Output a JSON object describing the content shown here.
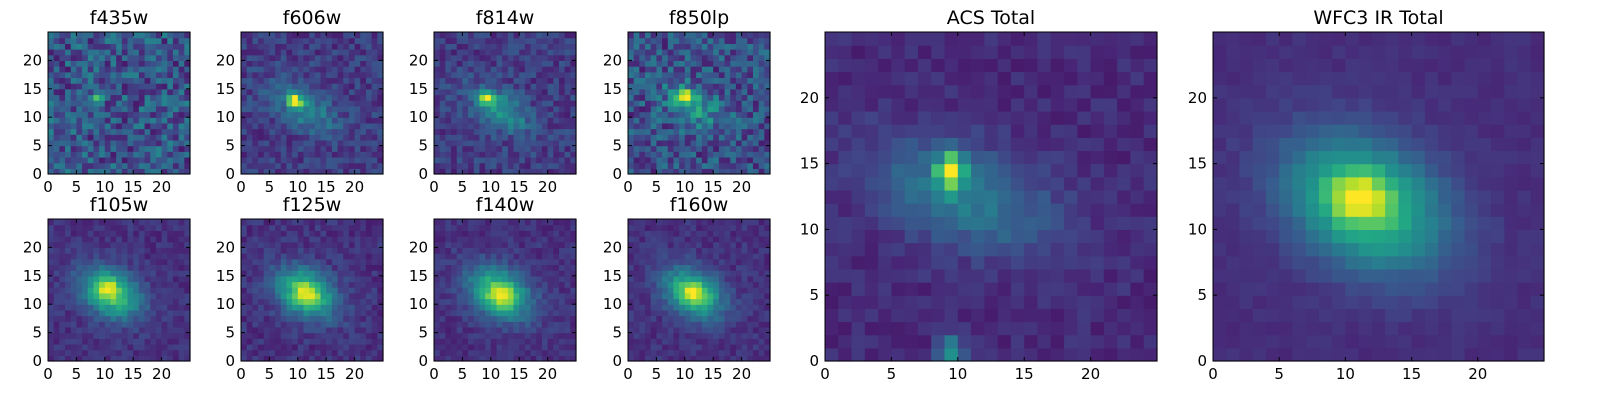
{
  "chart_data": [
    {
      "type": "heatmap",
      "title": "f435w",
      "xlim": [
        0,
        25
      ],
      "ylim": [
        0,
        25
      ],
      "xticks": [
        0,
        5,
        10,
        15,
        20
      ],
      "yticks": [
        0,
        5,
        10,
        15,
        20
      ],
      "colormap": "viridis",
      "features": {
        "noise": 0.38,
        "base": 0.26,
        "compact": {
          "x": 9,
          "y": 13.5,
          "sx": 0.55,
          "sy": 0.9,
          "amp": 0.72
        }
      }
    },
    {
      "type": "heatmap",
      "title": "f606w",
      "xlim": [
        0,
        25
      ],
      "ylim": [
        0,
        25
      ],
      "xticks": [
        0,
        5,
        10,
        15,
        20
      ],
      "yticks": [
        0,
        5,
        10,
        15,
        20
      ],
      "colormap": "viridis",
      "features": {
        "noise": 0.2,
        "base": 0.18,
        "compact": {
          "x": 9.5,
          "y": 13,
          "sx": 0.8,
          "sy": 0.7,
          "amp": 0.75
        },
        "extended": {
          "x": 11,
          "y": 11.5,
          "sx": 4.5,
          "sy": 2.2,
          "angle": -30,
          "amp": 0.3
        }
      }
    },
    {
      "type": "heatmap",
      "title": "f814w",
      "xlim": [
        0,
        25
      ],
      "ylim": [
        0,
        25
      ],
      "xticks": [
        0,
        5,
        10,
        15,
        20
      ],
      "yticks": [
        0,
        5,
        10,
        15,
        20
      ],
      "colormap": "viridis",
      "features": {
        "noise": 0.2,
        "base": 0.18,
        "compact": {
          "x": 9.5,
          "y": 13.5,
          "sx": 0.8,
          "sy": 0.7,
          "amp": 0.75
        },
        "extended": {
          "x": 11.5,
          "y": 11.5,
          "sx": 4.2,
          "sy": 2.1,
          "angle": -30,
          "amp": 0.35
        }
      }
    },
    {
      "type": "heatmap",
      "title": "f850lp",
      "xlim": [
        0,
        25
      ],
      "ylim": [
        0,
        25
      ],
      "xticks": [
        0,
        5,
        10,
        15,
        20
      ],
      "yticks": [
        0,
        5,
        10,
        15,
        20
      ],
      "colormap": "viridis",
      "features": {
        "noise": 0.34,
        "base": 0.24,
        "compact": {
          "x": 10,
          "y": 14,
          "sx": 1.0,
          "sy": 0.8,
          "amp": 0.62
        },
        "extended": {
          "x": 11.5,
          "y": 12,
          "sx": 3.8,
          "sy": 2.2,
          "angle": -30,
          "amp": 0.3
        }
      }
    },
    {
      "type": "heatmap",
      "title": "f105w",
      "xlim": [
        0,
        25
      ],
      "ylim": [
        0,
        25
      ],
      "xticks": [
        0,
        5,
        10,
        15,
        20
      ],
      "yticks": [
        0,
        5,
        10,
        15,
        20
      ],
      "colormap": "viridis",
      "features": {
        "noise": 0.12,
        "base": 0.14,
        "compact": {
          "x": 10.5,
          "y": 13,
          "sx": 1.3,
          "sy": 1.2,
          "amp": 0.3
        },
        "extended": {
          "x": 11,
          "y": 12,
          "sx": 4.0,
          "sy": 2.8,
          "angle": -30,
          "amp": 0.6
        }
      }
    },
    {
      "type": "heatmap",
      "title": "f125w",
      "xlim": [
        0,
        25
      ],
      "ylim": [
        0,
        25
      ],
      "xticks": [
        0,
        5,
        10,
        15,
        20
      ],
      "yticks": [
        0,
        5,
        10,
        15,
        20
      ],
      "colormap": "viridis",
      "features": {
        "noise": 0.14,
        "base": 0.14,
        "compact": {
          "x": 11.5,
          "y": 12,
          "sx": 1.4,
          "sy": 1.2,
          "amp": 0.3
        },
        "extended": {
          "x": 11.5,
          "y": 12,
          "sx": 4.0,
          "sy": 2.8,
          "angle": -30,
          "amp": 0.6
        }
      }
    },
    {
      "type": "heatmap",
      "title": "f140w",
      "xlim": [
        0,
        25
      ],
      "ylim": [
        0,
        25
      ],
      "xticks": [
        0,
        5,
        10,
        15,
        20
      ],
      "yticks": [
        0,
        5,
        10,
        15,
        20
      ],
      "colormap": "viridis",
      "features": {
        "noise": 0.12,
        "base": 0.14,
        "compact": {
          "x": 12,
          "y": 11.5,
          "sx": 1.6,
          "sy": 1.3,
          "amp": 0.3
        },
        "extended": {
          "x": 11.5,
          "y": 12,
          "sx": 4.2,
          "sy": 2.9,
          "angle": -30,
          "amp": 0.6
        }
      }
    },
    {
      "type": "heatmap",
      "title": "f160w",
      "xlim": [
        0,
        25
      ],
      "ylim": [
        0,
        25
      ],
      "xticks": [
        0,
        5,
        10,
        15,
        20
      ],
      "yticks": [
        0,
        5,
        10,
        15,
        20
      ],
      "colormap": "viridis",
      "features": {
        "noise": 0.12,
        "base": 0.14,
        "compact": {
          "x": 11.5,
          "y": 12,
          "sx": 1.4,
          "sy": 1.2,
          "amp": 0.3
        },
        "extended": {
          "x": 11.5,
          "y": 12,
          "sx": 4.0,
          "sy": 2.7,
          "angle": -30,
          "amp": 0.6
        }
      }
    },
    {
      "type": "heatmap",
      "title": "ACS Total",
      "xlim": [
        0,
        25
      ],
      "ylim": [
        0,
        25
      ],
      "xticks": [
        0,
        5,
        10,
        15,
        20
      ],
      "yticks": [
        0,
        5,
        10,
        15,
        20
      ],
      "colormap": "viridis",
      "features": {
        "noise": 0.1,
        "base": 0.12,
        "compact": {
          "x": 9.5,
          "y": 14.5,
          "sx": 0.7,
          "sy": 0.9,
          "amp": 0.8
        },
        "extended": {
          "x": 10.5,
          "y": 12.5,
          "sx": 5.0,
          "sy": 2.6,
          "angle": -20,
          "amp": 0.3
        },
        "spot": {
          "x": 9.5,
          "y": 0.5,
          "sx": 0.7,
          "sy": 1.0,
          "amp": 0.4
        }
      }
    },
    {
      "type": "heatmap",
      "title": "WFC3 IR Total",
      "xlim": [
        0,
        25
      ],
      "ylim": [
        0,
        25
      ],
      "xticks": [
        0,
        5,
        10,
        15,
        20
      ],
      "yticks": [
        0,
        5,
        10,
        15,
        20
      ],
      "colormap": "viridis",
      "features": {
        "noise": 0.05,
        "base": 0.13,
        "compact": {
          "x": 11,
          "y": 12.5,
          "sx": 1.5,
          "sy": 1.2,
          "amp": 0.35
        },
        "extended": {
          "x": 11.5,
          "y": 12,
          "sx": 4.5,
          "sy": 3.2,
          "angle": -30,
          "amp": 0.6
        }
      }
    }
  ]
}
